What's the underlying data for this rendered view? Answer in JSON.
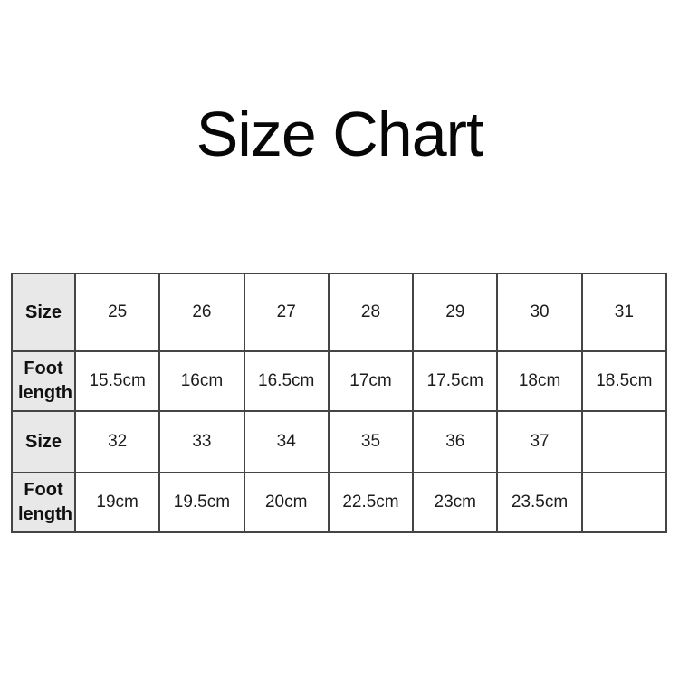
{
  "page": {
    "title": "Size Chart"
  },
  "colors": {
    "background": "#ffffff",
    "header_cell_bg": "#e8e8e8",
    "table_border": "#454545",
    "text": "#1c1c1c",
    "title_text": "#070707"
  },
  "table": {
    "rows": [
      {
        "header": "Size",
        "cells": [
          "25",
          "26",
          "27",
          "28",
          "29",
          "30",
          "31"
        ]
      },
      {
        "header": "Foot length",
        "cells": [
          "15.5cm",
          "16cm",
          "16.5cm",
          "17cm",
          "17.5cm",
          "18cm",
          "18.5cm"
        ]
      },
      {
        "header": "Size",
        "cells": [
          "32",
          "33",
          "34",
          "35",
          "36",
          "37",
          ""
        ]
      },
      {
        "header": "Foot length",
        "cells": [
          "19cm",
          "19.5cm",
          "20cm",
          "22.5cm",
          "23cm",
          "23.5cm",
          ""
        ]
      }
    ]
  },
  "chart_data": {
    "type": "table",
    "title": "Size Chart",
    "columns": [
      "Size",
      "Foot length"
    ],
    "rows": [
      [
        "Size",
        "25",
        "26",
        "27",
        "28",
        "29",
        "30",
        "31"
      ],
      [
        "Foot length",
        "15.5cm",
        "16cm",
        "16.5cm",
        "17cm",
        "17.5cm",
        "18cm",
        "18.5cm"
      ],
      [
        "Size",
        "32",
        "33",
        "34",
        "35",
        "36",
        "37",
        ""
      ],
      [
        "Foot length",
        "19cm",
        "19.5cm",
        "20cm",
        "22.5cm",
        "23cm",
        "23.5cm",
        ""
      ]
    ],
    "pairs": [
      {
        "size": "25",
        "foot_length": "15.5cm"
      },
      {
        "size": "26",
        "foot_length": "16cm"
      },
      {
        "size": "27",
        "foot_length": "16.5cm"
      },
      {
        "size": "28",
        "foot_length": "17cm"
      },
      {
        "size": "29",
        "foot_length": "17.5cm"
      },
      {
        "size": "30",
        "foot_length": "18cm"
      },
      {
        "size": "31",
        "foot_length": "18.5cm"
      },
      {
        "size": "32",
        "foot_length": "19cm"
      },
      {
        "size": "33",
        "foot_length": "19.5cm"
      },
      {
        "size": "34",
        "foot_length": "20cm"
      },
      {
        "size": "35",
        "foot_length": "22.5cm"
      },
      {
        "size": "36",
        "foot_length": "23cm"
      },
      {
        "size": "37",
        "foot_length": "23.5cm"
      }
    ]
  }
}
